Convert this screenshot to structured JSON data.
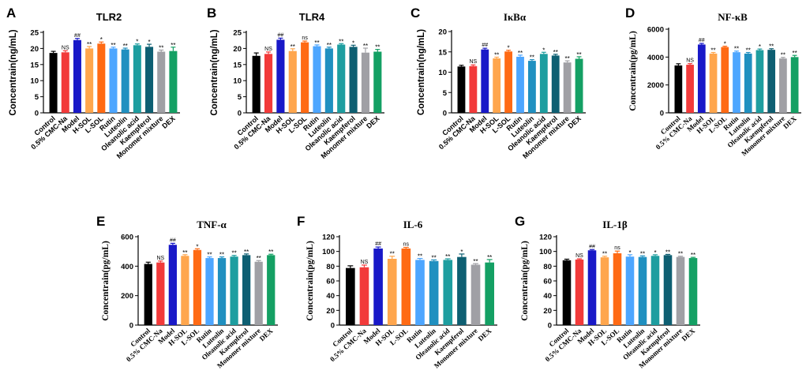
{
  "category_colors": [
    "#000000",
    "#f23a3a",
    "#1919c8",
    "#ffa64d",
    "#ff6a14",
    "#4da6ff",
    "#2090c0",
    "#1e9ea0",
    "#0e5f72",
    "#a0a0a5",
    "#14a064"
  ],
  "chart_data": [
    {
      "type": "bar",
      "panel": "A",
      "title": "TLR2",
      "title_style": "sans",
      "ylabel": "Concentrain(ng/mL)",
      "ylim": [
        0,
        25
      ],
      "yticks": [
        0,
        5,
        10,
        15,
        20,
        25
      ],
      "categories": [
        "Control",
        "0.5% CMC-Na",
        "Model",
        "H-SOL",
        "L-SOL",
        "Rutin",
        "Luteolin",
        "Oleanolic acid",
        "Kaempferol",
        "Monomer mixture",
        "DEX"
      ],
      "values": [
        18.6,
        18.8,
        22.6,
        20.0,
        21.5,
        20.0,
        19.7,
        21.0,
        20.5,
        19.0,
        19.2
      ],
      "errors": [
        0.5,
        0.5,
        0.5,
        0.6,
        0.5,
        0.4,
        0.4,
        0.4,
        0.8,
        0.5,
        1.2
      ],
      "annotations": [
        "",
        "NS",
        "##",
        "**",
        "*",
        "**",
        "**",
        "*",
        "*",
        "**",
        "**"
      ]
    },
    {
      "type": "bar",
      "panel": "B",
      "title": "TLR4",
      "title_style": "sans",
      "ylabel": "Concentrain(ng/mL)",
      "ylim": [
        0,
        25
      ],
      "yticks": [
        0,
        5,
        10,
        15,
        20,
        25
      ],
      "categories": [
        "Control",
        "0.5% CMC-Na",
        "Model",
        "H-SOL",
        "L-SOL",
        "Rutin",
        "Luteolin",
        "Oleanolic acid",
        "Kaempferol",
        "Monomer mixture",
        "DEX"
      ],
      "values": [
        17.7,
        18.3,
        22.7,
        19.2,
        21.9,
        20.7,
        20.0,
        21.2,
        20.5,
        18.7,
        19.0
      ],
      "errors": [
        0.9,
        0.6,
        0.5,
        0.7,
        0.4,
        0.4,
        0.4,
        0.3,
        0.5,
        1.4,
        0.7
      ],
      "annotations": [
        "",
        "NS",
        "##",
        "**",
        "ns",
        "**",
        "**",
        "**",
        "*",
        "**",
        "**"
      ]
    },
    {
      "type": "bar",
      "panel": "C",
      "title": "IκBα",
      "title_style": "serif",
      "ylabel": "Concentrain(ng/mL)",
      "ylim": [
        0,
        20
      ],
      "yticks": [
        0,
        5,
        10,
        15,
        20
      ],
      "categories": [
        "Control",
        "0.5% CMC-Na",
        "Model",
        "H-SOL",
        "L-SOL",
        "Rutin",
        "Luteolin",
        "Oleanolic acid",
        "Kaempferol",
        "Monomer mixture",
        "DEX"
      ],
      "values": [
        11.4,
        11.5,
        15.6,
        13.4,
        15.1,
        13.8,
        12.8,
        14.5,
        14.1,
        12.4,
        13.3
      ],
      "errors": [
        0.3,
        0.3,
        0.3,
        0.3,
        0.3,
        0.4,
        0.3,
        0.4,
        0.3,
        0.4,
        0.5
      ],
      "annotations": [
        "",
        "NS",
        "##",
        "**",
        "*",
        "**",
        "**",
        "*",
        "**",
        "**",
        "**"
      ]
    },
    {
      "type": "bar",
      "panel": "D",
      "title": "NF-κB",
      "title_style": "serif",
      "ylabel": "Concentrain(pg/mL)",
      "ylim": [
        0,
        6000
      ],
      "yticks": [
        0,
        2000,
        4000,
        6000
      ],
      "categories": [
        "Control",
        "0.5% CMC-Na",
        "Model",
        "H-SOL",
        "L-SOL",
        "Rutin",
        "Luteolin",
        "Oleanolic acid",
        "Kaempferol",
        "Monomer mixture",
        "DEX"
      ],
      "values": [
        3400,
        3450,
        4900,
        4250,
        4720,
        4350,
        4250,
        4500,
        4520,
        3900,
        4000
      ],
      "errors": [
        120,
        80,
        80,
        80,
        60,
        80,
        80,
        80,
        80,
        80,
        120
      ],
      "annotations": [
        "",
        "NS",
        "##",
        "**",
        "*",
        "**",
        "**",
        "*",
        "**",
        "**",
        "**"
      ]
    },
    {
      "type": "bar",
      "panel": "E",
      "title": "TNF-α",
      "title_style": "serif",
      "ylabel": "Concentrain(pg/mL)",
      "ylim": [
        0,
        600
      ],
      "yticks": [
        0,
        200,
        400,
        600
      ],
      "categories": [
        "Control",
        "0.5% CMC-Na",
        "Model",
        "H-SOL",
        "L-SOL",
        "Rutin",
        "Luteolin",
        "Oleanolic acid",
        "Kaempferol",
        "Monomer mixture",
        "DEX"
      ],
      "values": [
        415,
        425,
        545,
        470,
        510,
        455,
        455,
        465,
        475,
        430,
        475
      ],
      "errors": [
        12,
        10,
        10,
        8,
        8,
        8,
        8,
        8,
        8,
        8,
        6
      ],
      "annotations": [
        "",
        "NS",
        "##",
        "**",
        "*",
        "**",
        "**",
        "**",
        "**",
        "**",
        "**"
      ]
    },
    {
      "type": "bar",
      "panel": "F",
      "title": "IL-6",
      "title_style": "serif",
      "ylabel": "Concentrain(pg/mL)",
      "ylim": [
        0,
        120
      ],
      "yticks": [
        0,
        20,
        40,
        60,
        80,
        100,
        120
      ],
      "categories": [
        "Control",
        "0.5% CMC-Na",
        "Model",
        "H-SOL",
        "L-SOL",
        "Rutin",
        "Luteolin",
        "Oleanolic acid",
        "Kaempferol",
        "Monomer mixture",
        "DEX"
      ],
      "values": [
        77.5,
        78.5,
        104.0,
        90.0,
        104.0,
        88.5,
        87.0,
        88.5,
        92.5,
        82.0,
        85.0
      ],
      "errors": [
        3.0,
        3.0,
        2.0,
        3.5,
        1.5,
        2.0,
        1.5,
        1.5,
        4.0,
        1.5,
        4.0
      ],
      "annotations": [
        "",
        "NS",
        "##",
        "**",
        "ns",
        "**",
        "**",
        "**",
        "*",
        "**",
        "**"
      ]
    },
    {
      "type": "bar",
      "panel": "G",
      "title": "IL-1β",
      "title_style": "serif",
      "ylabel": "Concentrain(pg/mL)",
      "ylim": [
        0,
        120
      ],
      "yticks": [
        0,
        20,
        40,
        60,
        80,
        100,
        120
      ],
      "categories": [
        "Control",
        "0.5% CMC-Na",
        "Model",
        "H-SOL",
        "L-SOL",
        "Rutin",
        "Luteolin",
        "Oleanolic acid",
        "Kaempferol",
        "Monomer mixture",
        "DEX"
      ],
      "values": [
        88.0,
        89.0,
        101.5,
        92.0,
        97.5,
        93.0,
        92.5,
        94.0,
        95.0,
        92.5,
        91.0
      ],
      "errors": [
        1.5,
        1.0,
        1.0,
        1.5,
        3.0,
        2.5,
        1.5,
        1.5,
        1.0,
        1.0,
        1.0
      ],
      "annotations": [
        "",
        "NS",
        "##",
        "**",
        "ns",
        "*",
        "**",
        "*",
        "**",
        "**",
        "**"
      ]
    }
  ]
}
